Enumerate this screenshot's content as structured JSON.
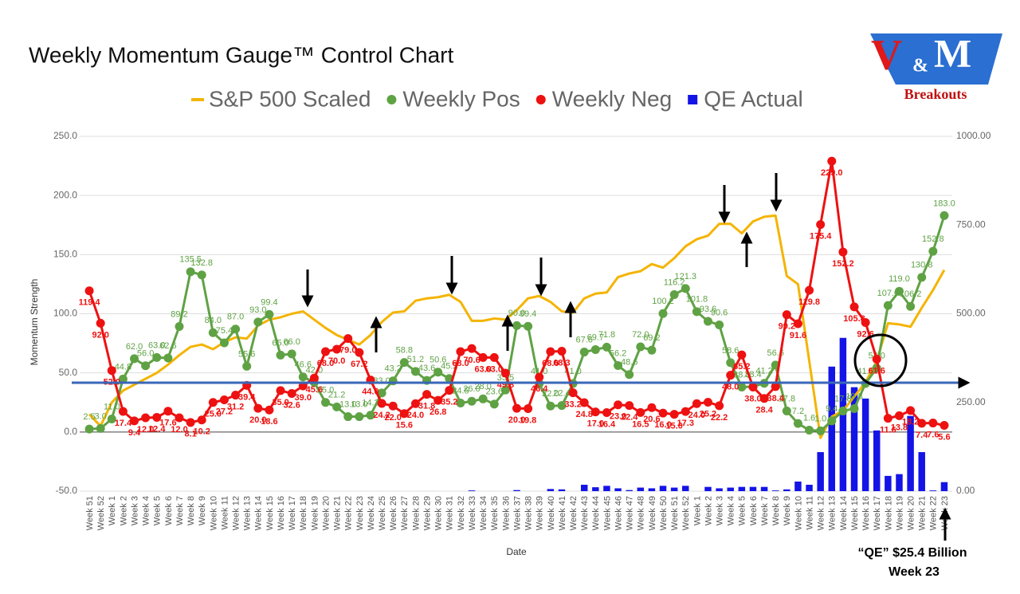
{
  "chart_data": {
    "type": "combo",
    "title": "Weekly Momentum Gauge™ Control Chart",
    "y_label": "Momentum Strength",
    "x_label": "Date",
    "logo": {
      "v": "V",
      "amp": "&",
      "m": "M",
      "tagline": "Breakouts"
    },
    "annotations": [
      "“QE” $25.4 Billion",
      "Week 23"
    ],
    "categories": [
      "Week 51",
      "Week 52",
      "Week 1",
      "Week 2",
      "Week 3",
      "Week 4",
      "Week 5",
      "Week 6",
      "Week 7",
      "Week 8",
      "Week 9",
      "Week 10",
      "Week 11",
      "Week 12",
      "Week 13",
      "Week 14",
      "Week 15",
      "Week 16",
      "Week 17",
      "Week 18",
      "Week 19",
      "Week 20",
      "Week 21",
      "Week 22",
      "Week 23",
      "Week 24",
      "Week 25",
      "Week 26",
      "Week 27",
      "Week 28",
      "Week 29",
      "Week 30",
      "Week 31",
      "Week 32",
      "Week 33",
      "Week 34",
      "Week 35",
      "Week 36",
      "Week 37",
      "Week 38",
      "Week 39",
      "Week 40",
      "Week 41",
      "Week 42",
      "Week 43",
      "Week 44",
      "Week 45",
      "Week 46",
      "Week 47",
      "Week 48",
      "Week 49",
      "Week 50",
      "Week 51",
      "Week 52",
      "Week 1",
      "Week 2",
      "Week 3",
      "Week 4",
      "Week 5",
      "Week 6",
      "Week 7",
      "Week 8",
      "Week 9",
      "Week 10",
      "Week 11",
      "Week 12",
      "Week 13",
      "Week 14",
      "Week 15",
      "Week 16",
      "Week 17",
      "Week 18",
      "Week 19",
      "Week 20",
      "Week 21",
      "Week 22",
      "Week 23"
    ],
    "ylim": [
      -50,
      250
    ],
    "yticks": [
      {
        "value": -50,
        "label": "-50.0"
      },
      {
        "value": 0,
        "label": "0.0"
      },
      {
        "value": 50,
        "label": "50.0"
      },
      {
        "value": 100,
        "label": "100.0"
      },
      {
        "value": 150,
        "label": "150.0"
      },
      {
        "value": 200,
        "label": "200.0"
      },
      {
        "value": 250,
        "label": "250.0"
      }
    ],
    "y2lim": [
      0,
      1000
    ],
    "y2ticks": [
      {
        "value": 0,
        "label": "0.00"
      },
      {
        "value": 250,
        "label": "250.00"
      },
      {
        "value": 500,
        "label": "500.00"
      },
      {
        "value": 750,
        "label": "750.00"
      },
      {
        "value": 1000,
        "label": "1000.00"
      }
    ],
    "grid": true,
    "legend": "top",
    "series": [
      {
        "name": "S&P 500 Scaled",
        "type": "line",
        "color": "#f4b400",
        "values": [
          15,
          5,
          25,
          35,
          40,
          45,
          50,
          57,
          65,
          72,
          74,
          70,
          76,
          80,
          79,
          90,
          95,
          97,
          100,
          102,
          95,
          88,
          82,
          78,
          74,
          82,
          93,
          101,
          102,
          111,
          113,
          114,
          116,
          110,
          94,
          94,
          96,
          95,
          103,
          113,
          115,
          110,
          102,
          101,
          113,
          117,
          118,
          131,
          134,
          136,
          142,
          139,
          147,
          157,
          163,
          166,
          176,
          176,
          168,
          178,
          182,
          183,
          132,
          125,
          60,
          -5,
          13,
          18,
          30,
          42,
          60,
          92,
          91,
          89,
          105,
          120,
          137
        ]
      },
      {
        "name": "Weekly Pos",
        "type": "line",
        "color": "#5fa244",
        "values": [
          2.5,
          3.0,
          11.0,
          44.8,
          62.0,
          56.0,
          63.0,
          62.6,
          89.2,
          135.5,
          132.8,
          84.0,
          75.4,
          87.0,
          55.6,
          93.0,
          99.4,
          65.0,
          66.0,
          46.6,
          42.0,
          25.0,
          21.2,
          13.0,
          13.0,
          14.2,
          33.0,
          43.2,
          58.8,
          51.2,
          43.6,
          50.6,
          45.2,
          24.5,
          26.0,
          28.0,
          23.6,
          35.5,
          90.0,
          89.4,
          41.0,
          22.0,
          22.4,
          41.0,
          67.6,
          69.7,
          71.8,
          56.2,
          48.6,
          72.0,
          69.2,
          100.2,
          116.2,
          121.3,
          101.8,
          93.6,
          90.6,
          58.6,
          38.0,
          38.4,
          41.2,
          56.6,
          17.8,
          7.2,
          1.6,
          1.0,
          9.4,
          17.8,
          19.8,
          41.0,
          54.0,
          107.0,
          119.0,
          106.2,
          130.8,
          152.8,
          183.0
        ],
        "value_labels": [
          "2.5",
          "3.0",
          "11.0",
          "44.8",
          "62.0",
          "56.0",
          "63.0",
          "62.6",
          "89.2",
          "135.5",
          "132.8",
          "84.0",
          "75.4",
          "87.0",
          "55.6",
          "93.0",
          "99.4",
          "65.0",
          "66.0",
          "46.6",
          "42.0",
          "25.0",
          "21.2",
          "13.0",
          "13.0",
          "14.2",
          "33.0",
          "43.2",
          "58.8",
          "51.2",
          "43.6",
          "50.6",
          "45.2",
          "24.5",
          "26.0",
          "28.0",
          "23.6",
          "35.5",
          "90.0",
          "89.4",
          "41.0",
          "22.0",
          "22.4",
          "41.0",
          "67.6",
          "69.7",
          "71.8",
          "56.2",
          "48.6",
          "72.0",
          "69.2",
          "100.2",
          "116.2",
          "121.3",
          "101.8",
          "93.6",
          "90.6",
          "58.6",
          "38.0",
          "38.4",
          "41.2",
          "56.6",
          "17.8",
          "7.2",
          "1.6",
          "1.0",
          "9.4",
          "17.8",
          "19.8",
          "41.0",
          "54.0",
          "107.0",
          "119.0",
          "106.2",
          "130.8",
          "152.8",
          "183.0"
        ]
      },
      {
        "name": "Weekly Neg",
        "type": "line",
        "color": "#ee1111",
        "values": [
          119.4,
          92.0,
          52.0,
          17.4,
          9.4,
          12.0,
          12.4,
          17.6,
          12.0,
          8.1,
          10.2,
          25.0,
          27.2,
          31.2,
          39.4,
          20.0,
          18.6,
          35.0,
          32.6,
          39.0,
          45.6,
          68.0,
          70.0,
          79.0,
          67.2,
          44.0,
          24.2,
          22.0,
          15.6,
          24.0,
          31.8,
          26.8,
          35.2,
          68.0,
          70.6,
          63.0,
          63.0,
          49.8,
          20.0,
          19.8,
          46.4,
          68.0,
          68.3,
          33.2,
          24.8,
          17.0,
          16.4,
          23.0,
          22.4,
          16.5,
          20.6,
          16.0,
          15.0,
          17.3,
          24.0,
          25.2,
          22.2,
          48.0,
          65.2,
          38.0,
          28.4,
          38.4,
          99.2,
          91.6,
          119.8,
          175.4,
          229.0,
          152.2,
          105.8,
          92.6,
          61.6,
          11.6,
          13.8,
          18.2,
          7.4,
          7.6,
          5.6
        ],
        "value_labels": [
          "119.4",
          "92.0",
          "52.0",
          "17.4",
          "9.4",
          "12.0",
          "12.4",
          "17.6",
          "12.0",
          "8.1",
          "10.2",
          "25.0",
          "27.2",
          "31.2",
          "39.4",
          "20.0",
          "18.6",
          "35.0",
          "32.6",
          "39.0",
          "45.6",
          "68.0",
          "70.0",
          "79.0",
          "67.2",
          "44.0",
          "24.2",
          "22.0",
          "15.6",
          "24.0",
          "31.8",
          "26.8",
          "35.2",
          "68.0",
          "70.6",
          "63.0",
          "63.0",
          "49.8",
          "20.0",
          "19.8",
          "46.4",
          "68.0",
          "68.3",
          "33.2",
          "24.8",
          "17.0",
          "16.4",
          "23.0",
          "22.4",
          "16.5",
          "20.6",
          "16.0",
          "15.0",
          "17.3",
          "24.0",
          "25.2",
          "22.2",
          "48.0",
          "65.2",
          "38.0",
          "28.4",
          "38.4",
          "99.2",
          "91.6",
          "119.8",
          "175.4",
          "229.0",
          "152.2",
          "105.8",
          "92.6",
          "61.6",
          "11.6",
          "13.8",
          "18.2",
          "7.4",
          "7.6",
          "5.6"
        ]
      },
      {
        "name": "QE Actual",
        "type": "bar",
        "axis": "y2",
        "color": "#1414e6",
        "values": [
          0,
          0,
          0,
          0,
          0,
          0,
          0,
          0,
          0,
          0,
          0,
          0,
          0,
          0,
          0,
          0,
          0,
          0,
          0,
          0,
          0,
          0,
          0,
          0,
          0,
          0,
          0,
          0,
          0,
          0,
          0,
          0,
          0,
          0,
          2,
          0,
          0,
          0,
          3,
          0,
          0,
          6,
          5,
          0,
          18,
          11,
          15,
          8,
          3,
          10,
          8,
          15,
          10,
          15,
          0,
          12,
          8,
          10,
          12,
          12,
          12,
          2,
          5,
          27,
          18,
          110,
          351,
          432,
          293,
          261,
          171,
          43,
          48,
          212,
          110,
          2,
          25.4
        ]
      }
    ]
  }
}
